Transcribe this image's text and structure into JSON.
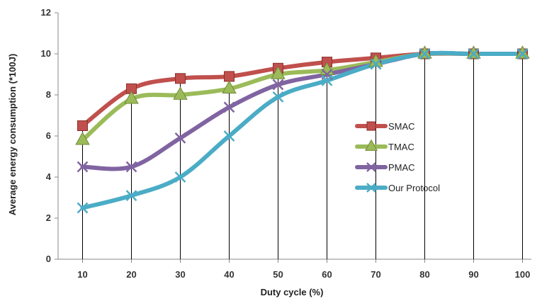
{
  "chart_data": {
    "type": "line",
    "title": "",
    "xlabel": "Duty cycle (%)",
    "ylabel": "Average energy consumption (*100J)",
    "categories": [
      "10",
      "20",
      "30",
      "40",
      "50",
      "60",
      "70",
      "80",
      "90",
      "100"
    ],
    "ylim": [
      0,
      12
    ],
    "yticks": [
      "0",
      "2",
      "4",
      "6",
      "8",
      "10",
      "12"
    ],
    "grid": "vertical drop lines from each category to the series",
    "legend_position": "right",
    "series": [
      {
        "name": "SMAC",
        "color": "#c0504d",
        "marker": "square",
        "values": [
          6.5,
          8.3,
          8.8,
          8.9,
          9.3,
          9.6,
          9.8,
          10.0,
          10.0,
          10.0
        ]
      },
      {
        "name": "TMAC",
        "color": "#9bbb59",
        "marker": "triangle",
        "values": [
          5.8,
          7.8,
          8.0,
          8.3,
          9.0,
          9.2,
          9.6,
          10.0,
          10.0,
          10.0
        ]
      },
      {
        "name": "PMAC",
        "color": "#8064a2",
        "marker": "x",
        "values": [
          4.5,
          4.5,
          5.9,
          7.4,
          8.5,
          9.0,
          9.5,
          10.0,
          10.0,
          10.0
        ]
      },
      {
        "name": "Our Protocol",
        "color": "#4bacc6",
        "marker": "x",
        "values": [
          2.5,
          3.1,
          4.0,
          6.0,
          7.9,
          8.7,
          9.5,
          10.0,
          10.0,
          10.0
        ]
      }
    ]
  }
}
